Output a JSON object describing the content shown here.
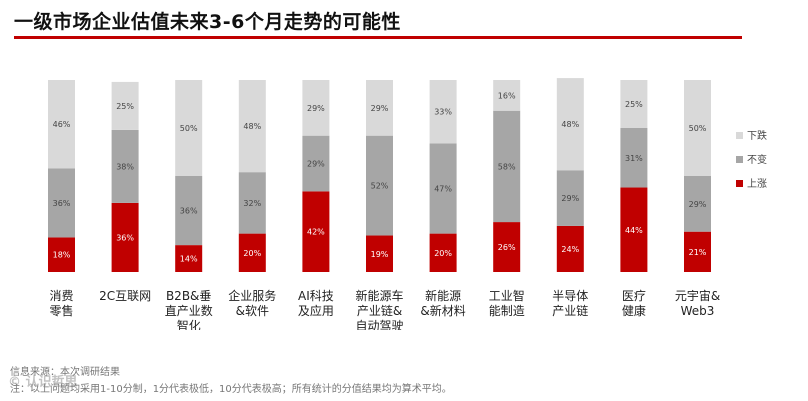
{
  "title": "一级市场企业估值未来3-6个月走势的可能性",
  "colors": {
    "down": "#d9d9d9",
    "flat": "#a6a6a6",
    "up": "#c00000",
    "rule": "#c00000"
  },
  "chart_data": {
    "type": "bar",
    "stacked": true,
    "percent": true,
    "title": "一级市场企业估值未来3-6个月走势的可能性",
    "categories": [
      [
        "消费",
        "零售"
      ],
      [
        "2C互联网"
      ],
      [
        "B2B&垂",
        "直产业数",
        "智化"
      ],
      [
        "企业服务",
        "&软件"
      ],
      [
        "AI科技",
        "及应用"
      ],
      [
        "新能源车",
        "产业链&",
        "自动驾驶"
      ],
      [
        "新能源",
        "&新材料"
      ],
      [
        "工业智",
        "能制造"
      ],
      [
        "半导体",
        "产业链"
      ],
      [
        "医疗",
        "健康"
      ],
      [
        "元宇宙&",
        "Web3"
      ]
    ],
    "series": [
      {
        "name": "上涨",
        "values": [
          18,
          36,
          14,
          20,
          42,
          19,
          20,
          26,
          24,
          44,
          21
        ]
      },
      {
        "name": "不变",
        "values": [
          36,
          38,
          36,
          32,
          29,
          52,
          47,
          58,
          29,
          31,
          29
        ]
      },
      {
        "name": "下跌",
        "values": [
          46,
          25,
          50,
          48,
          29,
          29,
          33,
          16,
          48,
          25,
          50
        ]
      }
    ],
    "legend": [
      "下跌",
      "不变",
      "上涨"
    ],
    "legend_position": "right",
    "ylim": [
      0,
      100
    ],
    "value_suffix": "%"
  },
  "source": "信息来源：本次调研结果",
  "note": "注：以上问题均采用1-10分制，1分代表极低，10分代表极高；所有统计的分值结果均为算术平均。",
  "watermark": "© 认识哲思"
}
